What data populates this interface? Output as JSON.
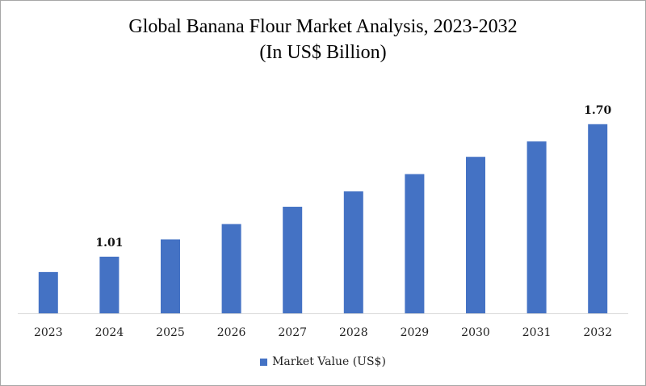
{
  "chart_data": {
    "type": "bar",
    "title": "Global Banana Flour Market Analysis, 2023-2032",
    "subtitle": "(In US$ Billion)",
    "categories": [
      "2023",
      "2024",
      "2025",
      "2026",
      "2027",
      "2028",
      "2029",
      "2030",
      "2031",
      "2032"
    ],
    "series": [
      {
        "name": "Market Value (US$)",
        "values": [
          0.93,
          1.01,
          1.1,
          1.18,
          1.27,
          1.35,
          1.44,
          1.53,
          1.61,
          1.7
        ],
        "color": "#4472c4"
      }
    ],
    "data_labels": {
      "1": "1.01",
      "9": "1.70"
    },
    "xlabel": "",
    "ylabel": "",
    "ylim": [
      0.715,
      1.8
    ],
    "grid": false,
    "legend": "bottom"
  }
}
